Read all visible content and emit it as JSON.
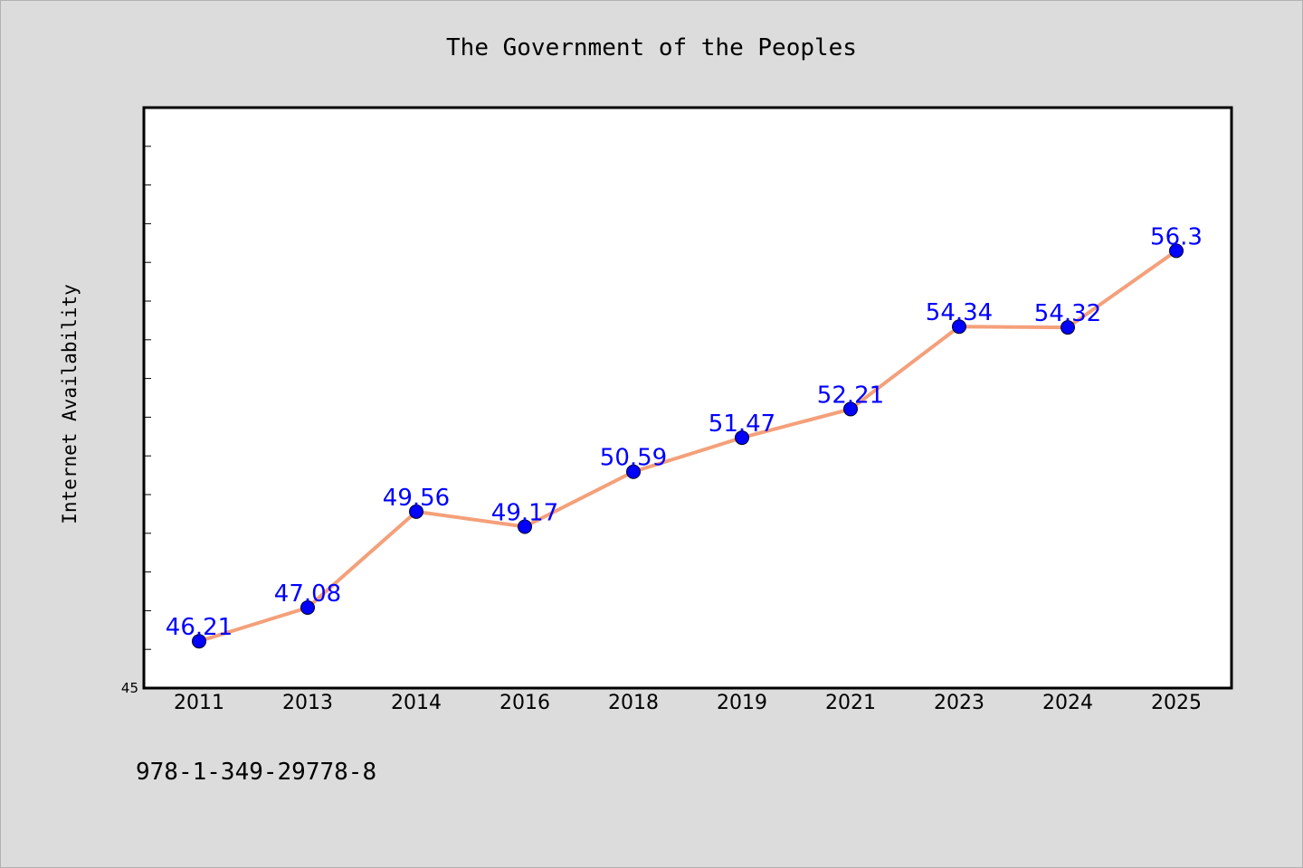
{
  "footer": "978-1-349-29778-8",
  "colors": {
    "background": "#dcdcdc",
    "plot_background": "#ffffff",
    "line": "#f4a07a",
    "marker": "#0000ff",
    "data_label": "#0000ff"
  },
  "chart_data": {
    "type": "line",
    "title": "The Government of the Peoples",
    "xlabel": "",
    "ylabel": "Internet Availability",
    "categories": [
      "2011",
      "2013",
      "2014",
      "2016",
      "2018",
      "2019",
      "2021",
      "2023",
      "2024",
      "2025"
    ],
    "series": [
      {
        "values": [
          46.21,
          47.08,
          49.56,
          49.17,
          50.59,
          51.47,
          52.21,
          54.34,
          54.32,
          56.3
        ]
      }
    ],
    "data_labels": [
      "46.21",
      "47.08",
      "49.56",
      "49.17",
      "50.59",
      "51.47",
      "52.21",
      "54.34",
      "54.32",
      "56.3"
    ],
    "ylim": [
      45,
      60
    ],
    "ytick_labels": [
      {
        "value": 45,
        "label": "45"
      }
    ],
    "ytick_step": 1,
    "grid": false,
    "legend": "none",
    "marker": "circle"
  }
}
